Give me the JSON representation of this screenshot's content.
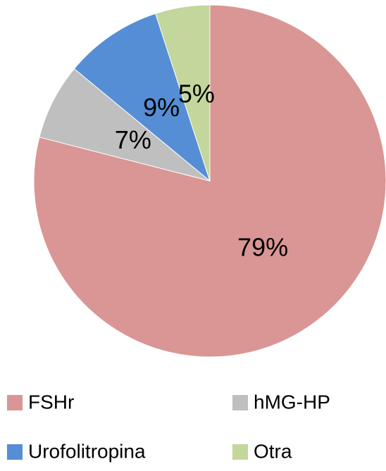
{
  "chart_data": {
    "type": "pie",
    "categories": [
      "FSHr",
      "hMG-HP",
      "Urofolitropina",
      "Otra"
    ],
    "values": [
      79,
      7,
      9,
      5
    ],
    "value_labels": [
      "79%",
      "7%",
      "9%",
      "5%"
    ],
    "colors": [
      "#d99694",
      "#bfbfbf",
      "#558ed5",
      "#c3d69b"
    ],
    "legend": "bottom"
  }
}
